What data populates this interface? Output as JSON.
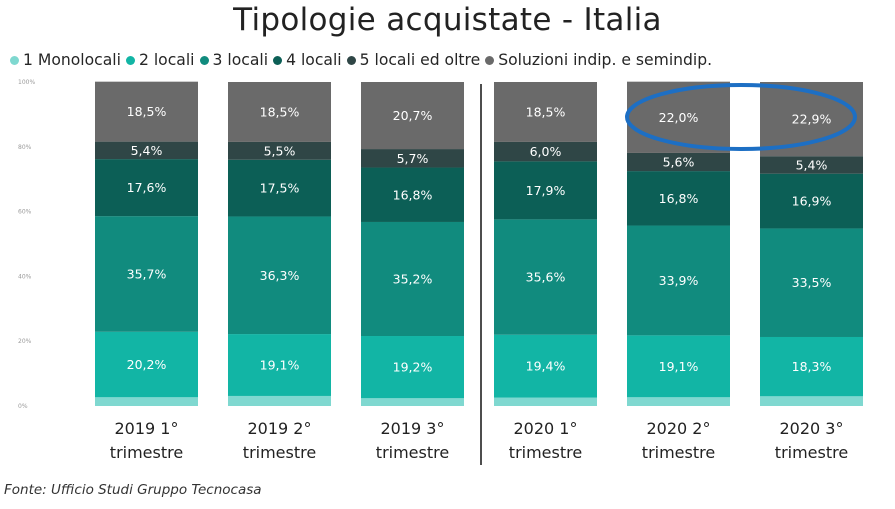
{
  "chart_data": {
    "type": "bar",
    "stacked": true,
    "title": "Tipologie acquistate - Italia",
    "categories": [
      [
        "2019 1°",
        "trimestre"
      ],
      [
        "2019 2°",
        "trimestre"
      ],
      [
        "2019 3°",
        "trimestre"
      ],
      [
        "2020 1°",
        "trimestre"
      ],
      [
        "2020 2°",
        "trimestre"
      ],
      [
        "2020 3°",
        "trimestre"
      ]
    ],
    "y_ticks": [
      "0%",
      "20%",
      "40%",
      "60%",
      "80%",
      "100%"
    ],
    "ylim": [
      0,
      100
    ],
    "legend_position": "top",
    "series": [
      {
        "name": "1 Monolocali",
        "color": "#7fd8d0",
        "values": [
          2.7,
          3.1,
          2.4,
          2.6,
          2.7,
          3.0
        ],
        "labels": [
          "",
          "",
          "",
          "",
          "",
          ""
        ]
      },
      {
        "name": "2 locali",
        "color": "#12b5a5",
        "values": [
          20.2,
          19.1,
          19.2,
          19.4,
          19.1,
          18.3
        ],
        "labels": [
          "20,2%",
          "19,1%",
          "19,2%",
          "19,4%",
          "19,1%",
          "18,3%"
        ]
      },
      {
        "name": "3 locali",
        "color": "#118b7e",
        "values": [
          35.7,
          36.3,
          35.2,
          35.6,
          33.9,
          33.5
        ],
        "labels": [
          "35,7%",
          "36,3%",
          "35,2%",
          "35,6%",
          "33,9%",
          "33,5%"
        ]
      },
      {
        "name": "4 locali",
        "color": "#0c5f56",
        "values": [
          17.6,
          17.5,
          16.8,
          17.9,
          16.8,
          16.9
        ],
        "labels": [
          "17,6%",
          "17,5%",
          "16,8%",
          "17,9%",
          "16,8%",
          "16,9%"
        ]
      },
      {
        "name": "5 locali ed oltre",
        "color": "#2f4646",
        "values": [
          5.4,
          5.5,
          5.7,
          6.0,
          5.6,
          5.4
        ],
        "labels": [
          "5,4%",
          "5,5%",
          "5,7%",
          "6,0%",
          "5,6%",
          "5,4%"
        ]
      },
      {
        "name": "Soluzioni indip. e semindip.",
        "color": "#6a6a6a",
        "values": [
          18.5,
          18.5,
          20.7,
          18.5,
          22.0,
          22.9
        ],
        "labels": [
          "18,5%",
          "18,5%",
          "20,7%",
          "18,5%",
          "22,0%",
          "22,9%"
        ]
      }
    ],
    "highlight_color": "#1d6fc4"
  },
  "source": "Fonte: Ufficio Studi Gruppo Tecnocasa"
}
